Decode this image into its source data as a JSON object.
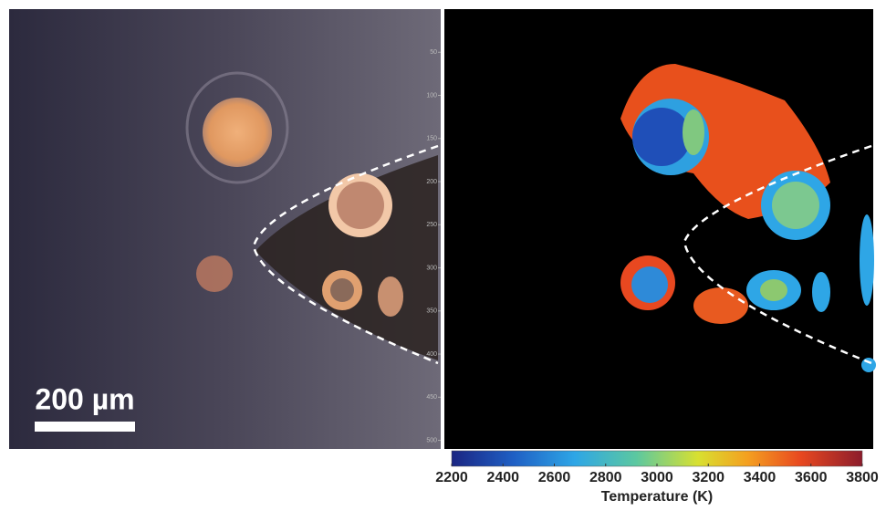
{
  "left_panel": {
    "scale_bar": "200 µm",
    "yticks": [
      50,
      100,
      150,
      200,
      250,
      300,
      350,
      400,
      450,
      500
    ],
    "ylim": [
      0,
      510
    ]
  },
  "colorbar": {
    "label": "Temperature (K)",
    "lim": [
      2200,
      3800
    ],
    "ticks": [
      2200,
      2400,
      2600,
      2800,
      3000,
      3200,
      3400,
      3600,
      3800
    ]
  }
}
